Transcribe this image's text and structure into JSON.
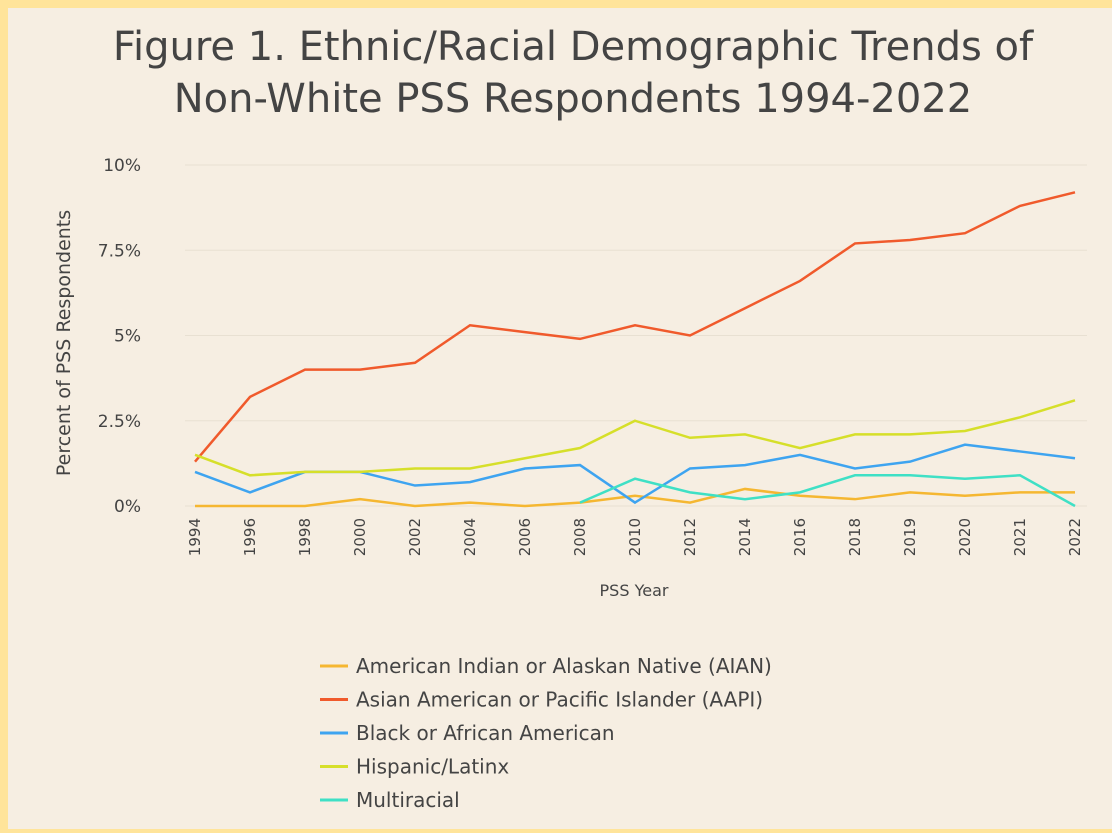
{
  "chart_data": {
    "type": "line",
    "title": "Figure 1. Ethnic/Racial Demographic Trends of",
    "subtitle": "Non-White PSS Respondents 1994-2022",
    "x_label": "PSS Year",
    "y_label": "Percent of PSS Respondents",
    "categories": [
      "1994",
      "1996",
      "1998",
      "2000",
      "2002",
      "2004",
      "2006",
      "2008",
      "2010",
      "2012",
      "2014",
      "2016",
      "2018",
      "2019",
      "2020",
      "2021",
      "2022"
    ],
    "ylim": [
      0,
      10
    ],
    "yticks": [
      {
        "value": 0,
        "label": "0%"
      },
      {
        "value": 2.5,
        "label": "2.5%"
      },
      {
        "value": 5,
        "label": "5%"
      },
      {
        "value": 7.5,
        "label": "7.5%"
      },
      {
        "value": 10,
        "label": "10%"
      }
    ],
    "grid": true,
    "legend": "bottom",
    "series": [
      {
        "name": "American Indian or Alaskan Native (AIAN)",
        "color": "#f5b731",
        "values": [
          0,
          0,
          0,
          0.2,
          0,
          0.1,
          0,
          0.1,
          0.3,
          0.1,
          0.5,
          0.3,
          0.2,
          0.4,
          0.3,
          0.4,
          0.4
        ]
      },
      {
        "name": "Asian American or Pacific Islander (AAPI)",
        "color": "#f05a2c",
        "values": [
          1.3,
          3.2,
          4.0,
          4.0,
          4.2,
          5.3,
          5.1,
          4.9,
          5.3,
          5.0,
          5.8,
          6.6,
          7.7,
          7.8,
          8.0,
          8.8,
          9.2
        ]
      },
      {
        "name": "Black or African American",
        "color": "#3ea4f0",
        "values": [
          1.0,
          0.4,
          1.0,
          1.0,
          0.6,
          0.7,
          1.1,
          1.2,
          0.1,
          1.1,
          1.2,
          1.5,
          1.1,
          1.3,
          1.8,
          1.6,
          1.4
        ]
      },
      {
        "name": "Hispanic/Latinx",
        "color": "#d6df2a",
        "values": [
          1.5,
          0.9,
          1.0,
          1.0,
          1.1,
          1.1,
          1.4,
          1.7,
          2.5,
          2.0,
          2.1,
          1.7,
          2.1,
          2.1,
          2.2,
          2.6,
          3.1
        ]
      },
      {
        "name": "Multiracial",
        "color": "#3fe0c5",
        "values": [
          null,
          null,
          null,
          null,
          null,
          null,
          null,
          0.1,
          0.8,
          0.4,
          0.2,
          0.4,
          0.9,
          0.9,
          0.8,
          0.9,
          0.0
        ]
      }
    ]
  }
}
